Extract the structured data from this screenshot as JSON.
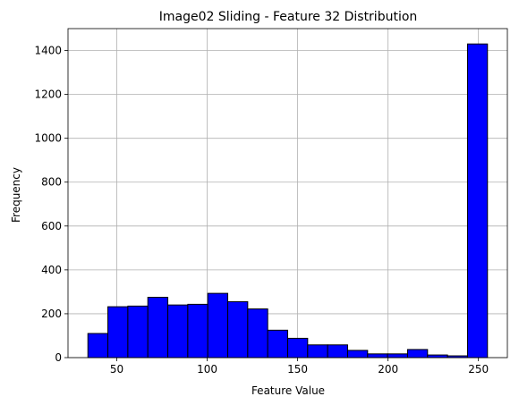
{
  "chart_data": {
    "type": "bar",
    "title": "Image02 Sliding - Feature 32 Distribution",
    "xlabel": "Feature Value",
    "ylabel": "Frequency",
    "xlim": [
      23.0,
      266.0
    ],
    "ylim": [
      0,
      1500
    ],
    "xticks": [
      50,
      100,
      150,
      200,
      250
    ],
    "yticks": [
      0,
      200,
      400,
      600,
      800,
      1000,
      1200,
      1400
    ],
    "grid": true,
    "bar_color": "#0000ff",
    "edge_color": "#000000",
    "bins": [
      {
        "x0": 34.0,
        "x1": 45.05,
        "count": 110
      },
      {
        "x0": 45.05,
        "x1": 56.1,
        "count": 232
      },
      {
        "x0": 56.1,
        "x1": 67.15,
        "count": 235
      },
      {
        "x0": 67.15,
        "x1": 78.2,
        "count": 275
      },
      {
        "x0": 78.2,
        "x1": 89.25,
        "count": 240
      },
      {
        "x0": 89.25,
        "x1": 100.3,
        "count": 243
      },
      {
        "x0": 100.3,
        "x1": 111.35,
        "count": 293
      },
      {
        "x0": 111.35,
        "x1": 122.4,
        "count": 255
      },
      {
        "x0": 122.4,
        "x1": 133.45,
        "count": 222
      },
      {
        "x0": 133.45,
        "x1": 144.5,
        "count": 125
      },
      {
        "x0": 144.5,
        "x1": 155.55,
        "count": 88
      },
      {
        "x0": 155.55,
        "x1": 166.6,
        "count": 58
      },
      {
        "x0": 166.6,
        "x1": 177.65,
        "count": 58
      },
      {
        "x0": 177.65,
        "x1": 188.7,
        "count": 33
      },
      {
        "x0": 188.7,
        "x1": 199.75,
        "count": 17
      },
      {
        "x0": 199.75,
        "x1": 210.8,
        "count": 17
      },
      {
        "x0": 210.8,
        "x1": 221.85,
        "count": 37
      },
      {
        "x0": 221.85,
        "x1": 232.9,
        "count": 12
      },
      {
        "x0": 232.9,
        "x1": 243.95,
        "count": 8
      },
      {
        "x0": 243.95,
        "x1": 255.0,
        "count": 1430
      }
    ]
  }
}
